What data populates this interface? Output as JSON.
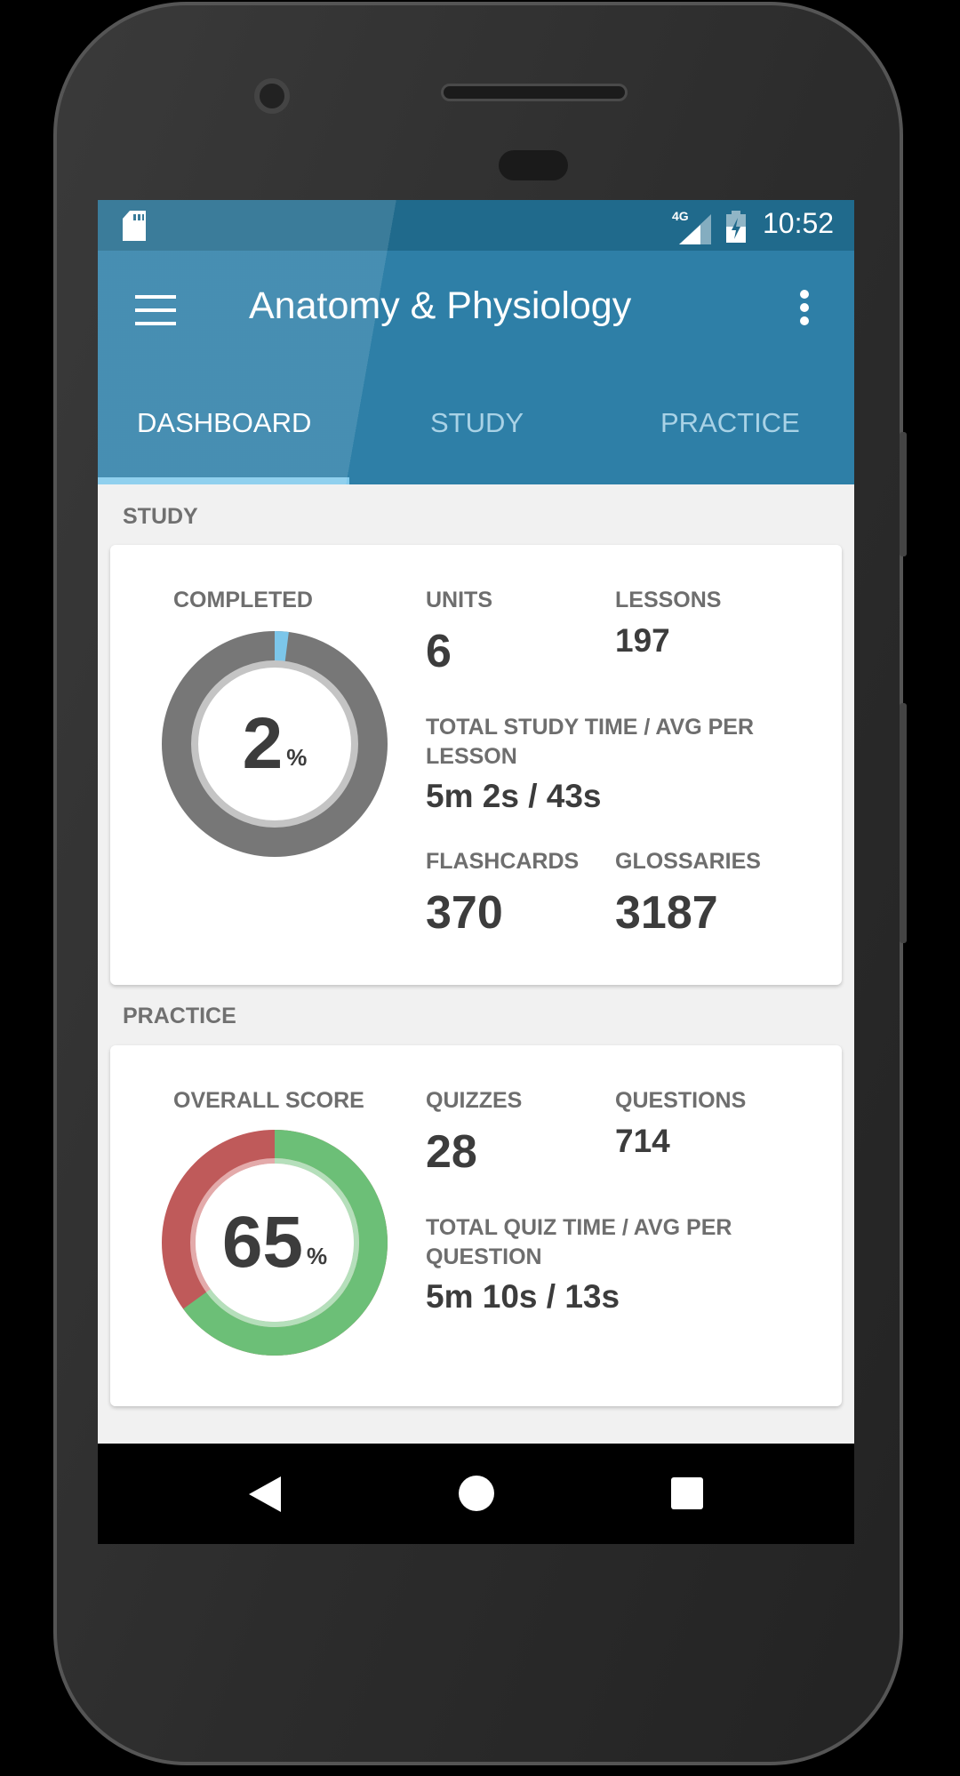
{
  "status_bar": {
    "time": "10:52",
    "network": "4G",
    "icons": [
      "sd-card-icon",
      "signal-icon",
      "battery-charging-icon"
    ]
  },
  "app_bar": {
    "title": "Anatomy & Physiology",
    "menu_icon": "hamburger-icon",
    "overflow_icon": "more-vert-icon"
  },
  "tabs": [
    {
      "label": "DASHBOARD",
      "active": true
    },
    {
      "label": "STUDY",
      "active": false
    },
    {
      "label": "PRACTICE",
      "active": false
    }
  ],
  "study": {
    "section_label": "STUDY",
    "completed_label": "COMPLETED",
    "completed_value": "2",
    "completed_unit": "%",
    "completed_percent": 2,
    "units_label": "UNITS",
    "units_value": "6",
    "lessons_label": "LESSONS",
    "lessons_value": "197",
    "time_label": "TOTAL STUDY TIME / AVG PER LESSON",
    "time_value": "5m 2s / 43s",
    "flashcards_label": "FLASHCARDS",
    "flashcards_value": "370",
    "glossaries_label": "GLOSSARIES",
    "glossaries_value": "3187",
    "colors": {
      "progress": "#7cc6ea",
      "remaining": "#777777"
    }
  },
  "practice": {
    "section_label": "PRACTICE",
    "score_label": "OVERALL SCORE",
    "score_value": "65",
    "score_unit": "%",
    "score_percent": 65,
    "quizzes_label": "QUIZZES",
    "quizzes_value": "28",
    "questions_label": "QUESTIONS",
    "questions_value": "714",
    "time_label": "TOTAL QUIZ TIME / AVG PER QUESTION",
    "time_value": "5m 10s / 13s",
    "colors": {
      "correct": "#6cbf77",
      "incorrect": "#bf5a5a"
    }
  },
  "nav_bar": {
    "icons": [
      "back-icon",
      "home-icon",
      "recents-icon"
    ]
  }
}
